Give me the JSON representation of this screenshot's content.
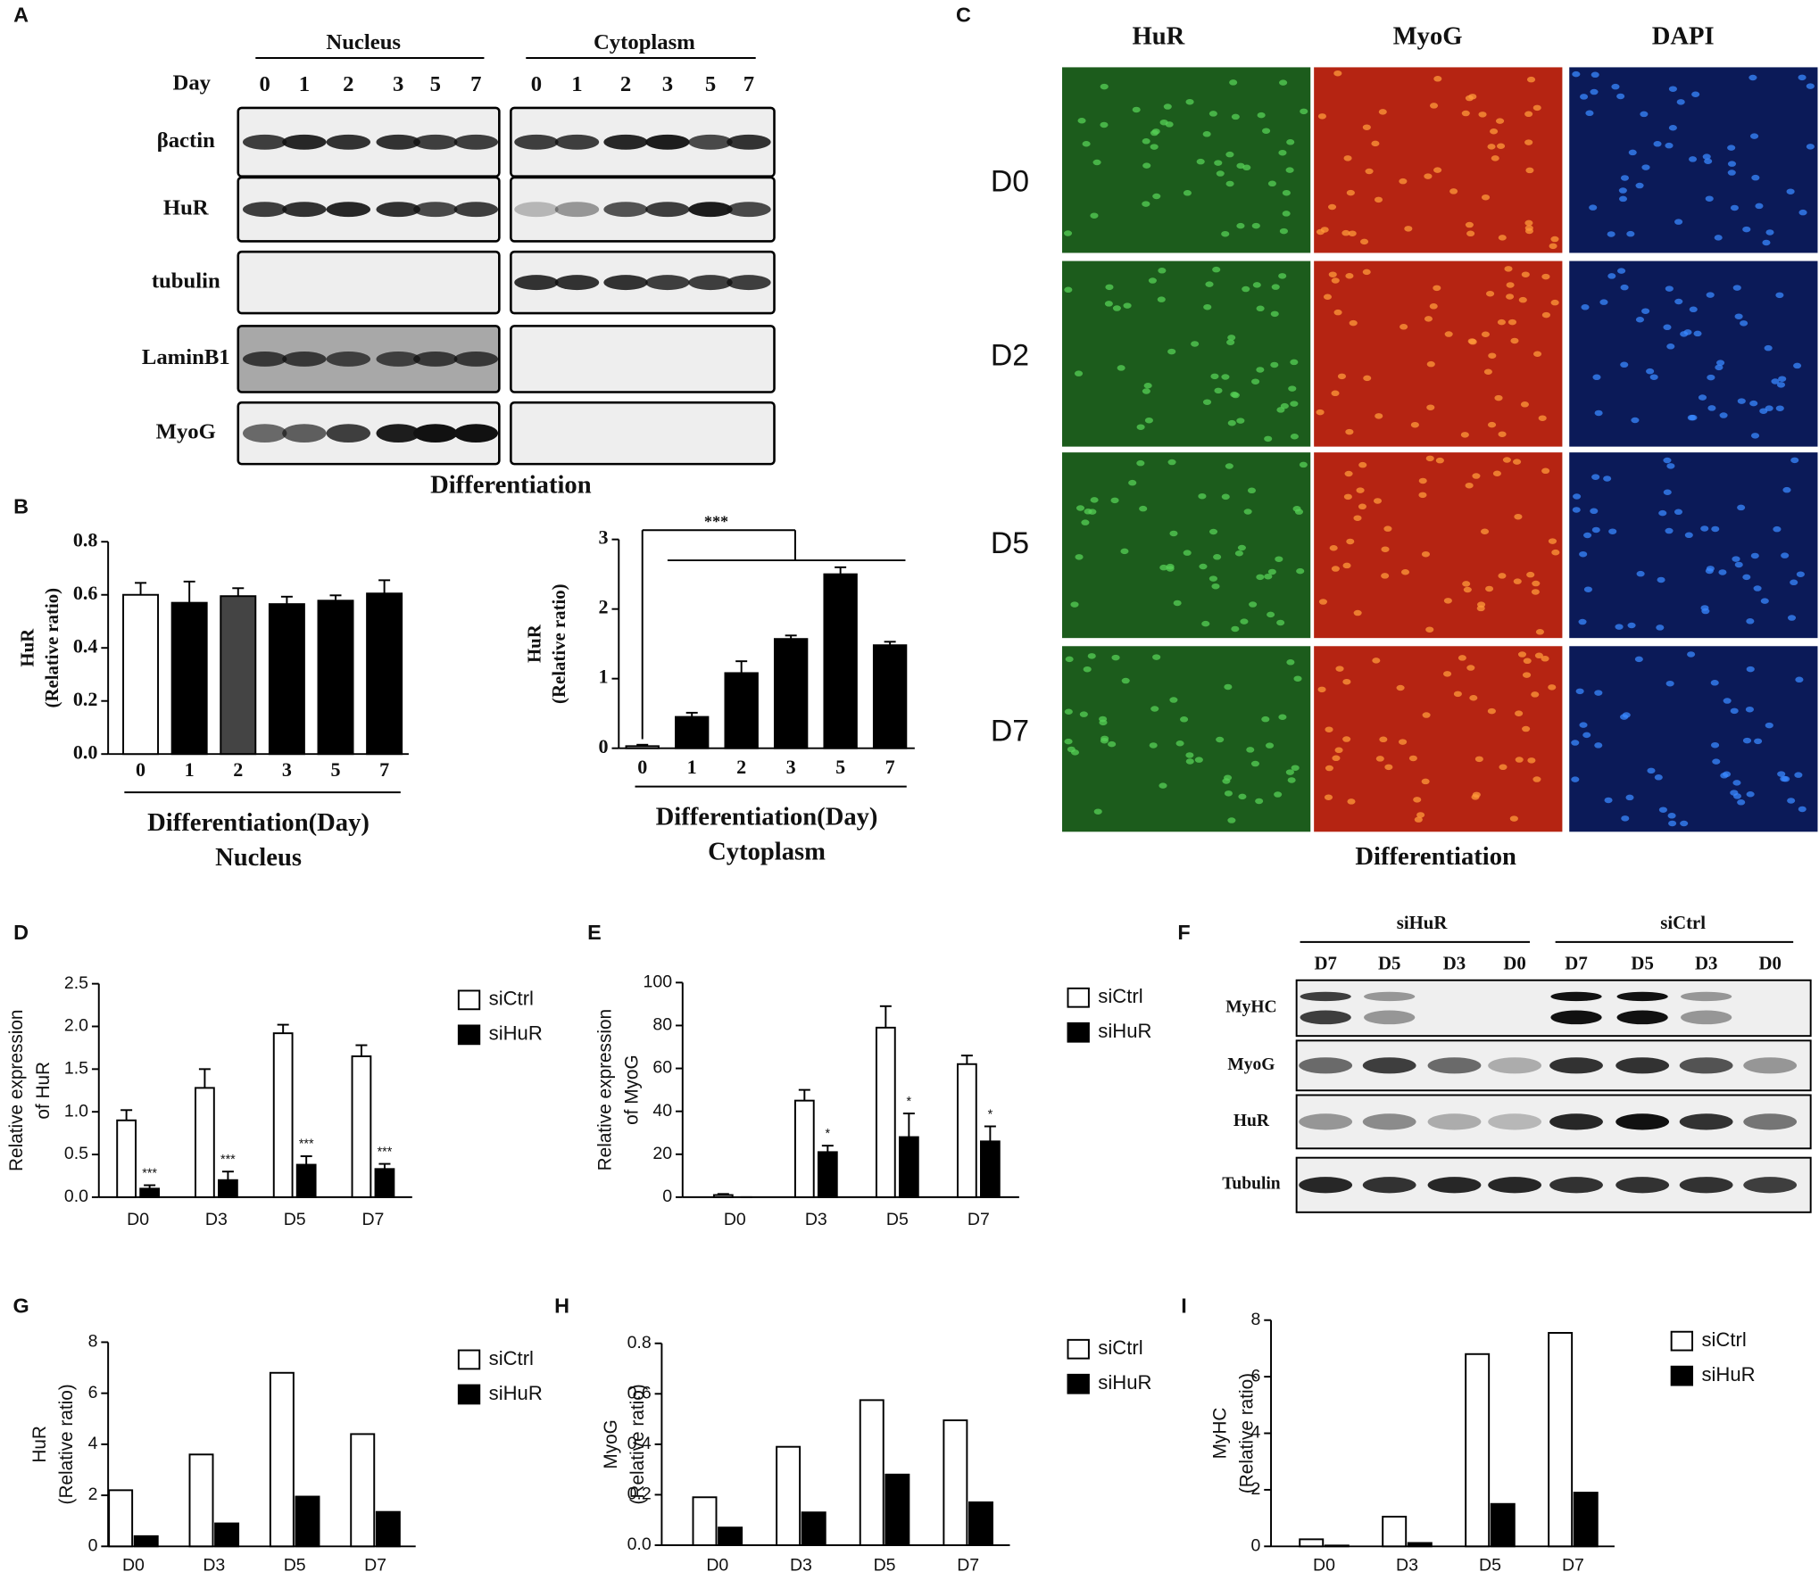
{
  "figure": {
    "panel_labels": [
      "A",
      "B",
      "C",
      "D",
      "E",
      "F",
      "G",
      "H",
      "I"
    ],
    "blot_A": {
      "groups": [
        "Nucleus",
        "Cytoplasm"
      ],
      "day_label": "Day",
      "days": [
        "0",
        "1",
        "2",
        "3",
        "5",
        "7"
      ],
      "rows": [
        "βactin",
        "HuR",
        "tubulin",
        "LaminB1",
        "MyoG"
      ],
      "xlabel": "Differentiation"
    },
    "micrograph_C": {
      "columns": [
        "HuR",
        "MyoG",
        "DAPI"
      ],
      "rows": [
        "D0",
        "D2",
        "D5",
        "D7"
      ],
      "xlabel": "Differentiation"
    },
    "blot_F": {
      "groups": [
        "siHuR",
        "siCtrl"
      ],
      "lanes": [
        "D7",
        "D5",
        "D3",
        "D0"
      ],
      "rows": [
        "MyHC",
        "MyoG",
        "HuR",
        "Tubulin"
      ]
    }
  },
  "chart_data": [
    {
      "type": "bar",
      "ylabel": [
        "HuR",
        "(Relative ratio)"
      ],
      "xlabel": "Differentiation(Day)",
      "subtitle": "Nucleus",
      "categories": [
        "0",
        "1",
        "2",
        "3",
        "5",
        "7"
      ],
      "values": [
        0.6,
        0.57,
        0.595,
        0.565,
        0.578,
        0.605
      ],
      "errors": [
        0.045,
        0.08,
        0.03,
        0.028,
        0.02,
        0.05
      ],
      "colors": [
        "#ffffff",
        "#000000",
        "#444444",
        "#000000",
        "#000000",
        "#000000"
      ],
      "ylim": [
        0,
        0.8
      ],
      "yticks": [
        {
          "value": 0,
          "label": "0.0"
        },
        0.2,
        0.4,
        0.6,
        0.8
      ]
    },
    {
      "type": "bar",
      "ylabel": [
        "HuR",
        "(Relative ratio)"
      ],
      "xlabel": "Differentiation(Day)",
      "subtitle": "Cytoplasm",
      "categories": [
        "0",
        "1",
        "2",
        "3",
        "5",
        "7"
      ],
      "values": [
        0.03,
        0.45,
        1.08,
        1.57,
        2.5,
        1.48
      ],
      "errors": [
        0.02,
        0.06,
        0.17,
        0.05,
        0.1,
        0.05
      ],
      "colors": [
        "#ffffff",
        "#000000",
        "#000000",
        "#000000",
        "#000000",
        "#000000"
      ],
      "annotation": "***",
      "ylim": [
        0,
        3
      ],
      "yticks": [
        0,
        1,
        2,
        3
      ]
    },
    {
      "type": "grouped_bar",
      "ylabel": [
        "Relative expression",
        "of HuR"
      ],
      "categories": [
        "D0",
        "D3",
        "D5",
        "D7"
      ],
      "series": [
        {
          "name": "siCtrl",
          "color": "#ffffff",
          "values": [
            0.9,
            1.28,
            1.92,
            1.65
          ],
          "errors": [
            0.12,
            0.22,
            0.1,
            0.13
          ]
        },
        {
          "name": "siHuR",
          "color": "#000000",
          "values": [
            0.1,
            0.2,
            0.38,
            0.33
          ],
          "errors": [
            0.04,
            0.1,
            0.1,
            0.06
          ],
          "annotations": [
            "***",
            "***",
            "***",
            "***"
          ]
        }
      ],
      "ylim": [
        0,
        2.5
      ],
      "yticks": [
        {
          "value": 0,
          "label": "0.0"
        },
        0.5,
        {
          "value": 1,
          "label": "1.0"
        },
        1.5,
        {
          "value": 2,
          "label": "2.0"
        },
        2.5
      ]
    },
    {
      "type": "grouped_bar",
      "ylabel": [
        "Relative expression",
        "of MyoG"
      ],
      "categories": [
        "D0",
        "D3",
        "D5",
        "D7"
      ],
      "series": [
        {
          "name": "siCtrl",
          "color": "#ffffff",
          "values": [
            1,
            45,
            79,
            62
          ],
          "errors": [
            0.5,
            5,
            10,
            4
          ]
        },
        {
          "name": "siHuR",
          "color": "#000000",
          "values": [
            0,
            21,
            28,
            26
          ],
          "errors": [
            0,
            3,
            11,
            7
          ],
          "annotations": [
            null,
            "*",
            "*",
            "*"
          ]
        }
      ],
      "ylim": [
        0,
        100
      ],
      "yticks": [
        0,
        20,
        40,
        60,
        80,
        100
      ]
    },
    {
      "type": "grouped_bar",
      "ylabel": [
        "HuR",
        "(Relative ratio)"
      ],
      "categories": [
        "D0",
        "D3",
        "D5",
        "D7"
      ],
      "series": [
        {
          "name": "siCtrl",
          "color": "#ffffff",
          "values": [
            2.2,
            3.6,
            6.8,
            4.4
          ]
        },
        {
          "name": "siHuR",
          "color": "#000000",
          "values": [
            0.4,
            0.9,
            1.95,
            1.35
          ]
        }
      ],
      "ylim": [
        0,
        8
      ],
      "yticks": [
        0,
        2,
        4,
        6,
        8
      ]
    },
    {
      "type": "grouped_bar",
      "ylabel": [
        "MyoG",
        "(Relative ratio)"
      ],
      "categories": [
        "D0",
        "D3",
        "D5",
        "D7"
      ],
      "series": [
        {
          "name": "siCtrl",
          "color": "#ffffff",
          "values": [
            0.19,
            0.39,
            0.575,
            0.495
          ]
        },
        {
          "name": "siHuR",
          "color": "#000000",
          "values": [
            0.07,
            0.13,
            0.28,
            0.17
          ]
        }
      ],
      "ylim": [
        0,
        0.8
      ],
      "yticks": [
        {
          "value": 0,
          "label": "0.0"
        },
        0.2,
        0.4,
        0.6,
        0.8
      ]
    },
    {
      "type": "grouped_bar",
      "ylabel": [
        "MyHC",
        "(Relative ratio)"
      ],
      "categories": [
        "D0",
        "D3",
        "D5",
        "D7"
      ],
      "series": [
        {
          "name": "siCtrl",
          "color": "#ffffff",
          "values": [
            0.25,
            1.05,
            6.8,
            7.55
          ]
        },
        {
          "name": "siHuR",
          "color": "#000000",
          "values": [
            0.03,
            0.12,
            1.5,
            1.9
          ]
        }
      ],
      "ylim": [
        0,
        8
      ],
      "yticks": [
        0,
        2,
        4,
        6,
        8
      ]
    }
  ]
}
